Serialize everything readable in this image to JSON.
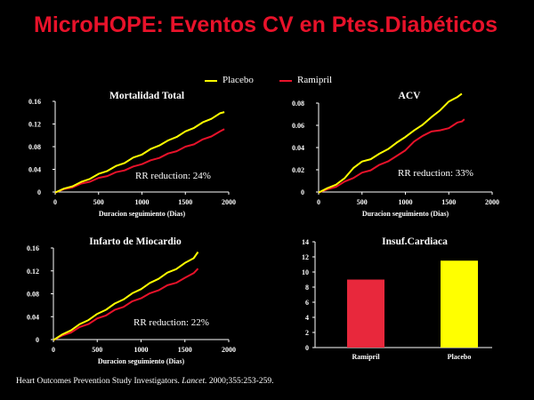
{
  "slide": {
    "title": "MicroHOPE: Eventos CV en Ptes.Diabéticos",
    "citation_authors": "Heart Outcomes Prevention Study Investigators.",
    "citation_journal": "Lancet.",
    "citation_ref": "2000;355:253-259."
  },
  "legend": [
    {
      "name": "Placebo",
      "color": "#ffff00"
    },
    {
      "name": "Ramipril",
      "color": "#e8122a"
    }
  ],
  "colors": {
    "background": "#000000",
    "title": "#e8122a",
    "axis": "#ffffff",
    "placebo": "#ffff00",
    "ramipril": "#e8122a"
  },
  "chart_data": [
    {
      "type": "line",
      "title": "Mortalidad Total",
      "xlabel": "Duracion seguimiento (Dias)",
      "ylabel": "",
      "xlim": [
        0,
        2000
      ],
      "ylim": [
        0,
        0.16
      ],
      "xticks": [
        "0",
        "500",
        "1000",
        "1500",
        "2000"
      ],
      "yticks": [
        "0",
        "0.04",
        "0.08",
        "0.12",
        "0.16"
      ],
      "annotation": "RR reduction: 24%",
      "series": [
        {
          "name": "Placebo",
          "color": "#ffff00",
          "x": [
            0,
            100,
            200,
            300,
            400,
            500,
            600,
            700,
            800,
            900,
            1000,
            1100,
            1200,
            1300,
            1400,
            1500,
            1600,
            1700,
            1800,
            1900,
            1950
          ],
          "y": [
            0,
            0.005,
            0.011,
            0.017,
            0.024,
            0.031,
            0.038,
            0.045,
            0.052,
            0.06,
            0.067,
            0.075,
            0.083,
            0.09,
            0.098,
            0.106,
            0.114,
            0.122,
            0.13,
            0.138,
            0.142
          ]
        },
        {
          "name": "Ramipril",
          "color": "#e8122a",
          "x": [
            0,
            100,
            200,
            300,
            400,
            500,
            600,
            700,
            800,
            900,
            1000,
            1100,
            1200,
            1300,
            1400,
            1500,
            1600,
            1700,
            1800,
            1900,
            1950
          ],
          "y": [
            0,
            0.004,
            0.009,
            0.014,
            0.019,
            0.024,
            0.029,
            0.034,
            0.039,
            0.044,
            0.05,
            0.055,
            0.061,
            0.067,
            0.073,
            0.079,
            0.085,
            0.092,
            0.099,
            0.106,
            0.112
          ]
        }
      ]
    },
    {
      "type": "line",
      "title": "ACV",
      "xlabel": "Duracion seguimiento (Dias)",
      "ylabel": "",
      "xlim": [
        0,
        2000
      ],
      "ylim": [
        0,
        0.08
      ],
      "xticks": [
        "0",
        "500",
        "1000",
        "1500",
        "2000"
      ],
      "yticks": [
        "0",
        "0.02",
        "0.04",
        "0.06",
        "0.08"
      ],
      "annotation": "RR reduction: 33%",
      "series": [
        {
          "name": "Placebo",
          "color": "#ffff00",
          "x": [
            0,
            100,
            200,
            300,
            400,
            500,
            600,
            700,
            800,
            900,
            1000,
            1100,
            1200,
            1300,
            1400,
            1500,
            1600,
            1650
          ],
          "y": [
            0,
            0.003,
            0.007,
            0.012,
            0.022,
            0.027,
            0.03,
            0.034,
            0.039,
            0.044,
            0.05,
            0.055,
            0.061,
            0.067,
            0.074,
            0.081,
            0.086,
            0.088
          ]
        },
        {
          "name": "Ramipril",
          "color": "#e8122a",
          "x": [
            0,
            100,
            200,
            300,
            400,
            500,
            600,
            700,
            800,
            900,
            1000,
            1100,
            1200,
            1300,
            1400,
            1500,
            1600,
            1650,
            1680
          ],
          "y": [
            0,
            0.002,
            0.005,
            0.009,
            0.013,
            0.017,
            0.02,
            0.024,
            0.028,
            0.032,
            0.038,
            0.045,
            0.051,
            0.054,
            0.056,
            0.057,
            0.063,
            0.063,
            0.066
          ]
        }
      ]
    },
    {
      "type": "line",
      "title": "Infarto de Miocardio",
      "xlabel": "Duracion seguimiento (Dias)",
      "ylabel": "",
      "xlim": [
        0,
        2000
      ],
      "ylim": [
        0,
        0.16
      ],
      "xticks": [
        "0",
        "500",
        "1000",
        "1500",
        "2000"
      ],
      "yticks": [
        "0",
        "0.04",
        "0.08",
        "0.12",
        "0.16"
      ],
      "annotation": "RR reduction: 22%",
      "series": [
        {
          "name": "Placebo",
          "color": "#ffff00",
          "x": [
            0,
            100,
            200,
            300,
            400,
            500,
            600,
            700,
            800,
            900,
            1000,
            1100,
            1200,
            1300,
            1400,
            1500,
            1600,
            1650
          ],
          "y": [
            0,
            0.008,
            0.017,
            0.026,
            0.035,
            0.044,
            0.053,
            0.062,
            0.071,
            0.08,
            0.089,
            0.098,
            0.107,
            0.116,
            0.124,
            0.133,
            0.143,
            0.152
          ]
        },
        {
          "name": "Ramipril",
          "color": "#e8122a",
          "x": [
            0,
            100,
            200,
            300,
            400,
            500,
            600,
            700,
            800,
            900,
            1000,
            1100,
            1200,
            1300,
            1400,
            1500,
            1600,
            1650
          ],
          "y": [
            0,
            0.006,
            0.013,
            0.021,
            0.028,
            0.036,
            0.043,
            0.051,
            0.058,
            0.066,
            0.073,
            0.08,
            0.087,
            0.094,
            0.1,
            0.107,
            0.117,
            0.123
          ]
        }
      ]
    },
    {
      "type": "bar",
      "title": "Insuf.Cardiaca",
      "xlabel": "",
      "ylabel": "",
      "ylim": [
        0,
        14
      ],
      "yticks": [
        "0",
        "2",
        "4",
        "6",
        "8",
        "10",
        "12",
        "14"
      ],
      "categories": [
        "Ramipril",
        "Placebo"
      ],
      "values": [
        9,
        11.5
      ],
      "colors": [
        "#e8283c",
        "#ffff00"
      ]
    }
  ]
}
